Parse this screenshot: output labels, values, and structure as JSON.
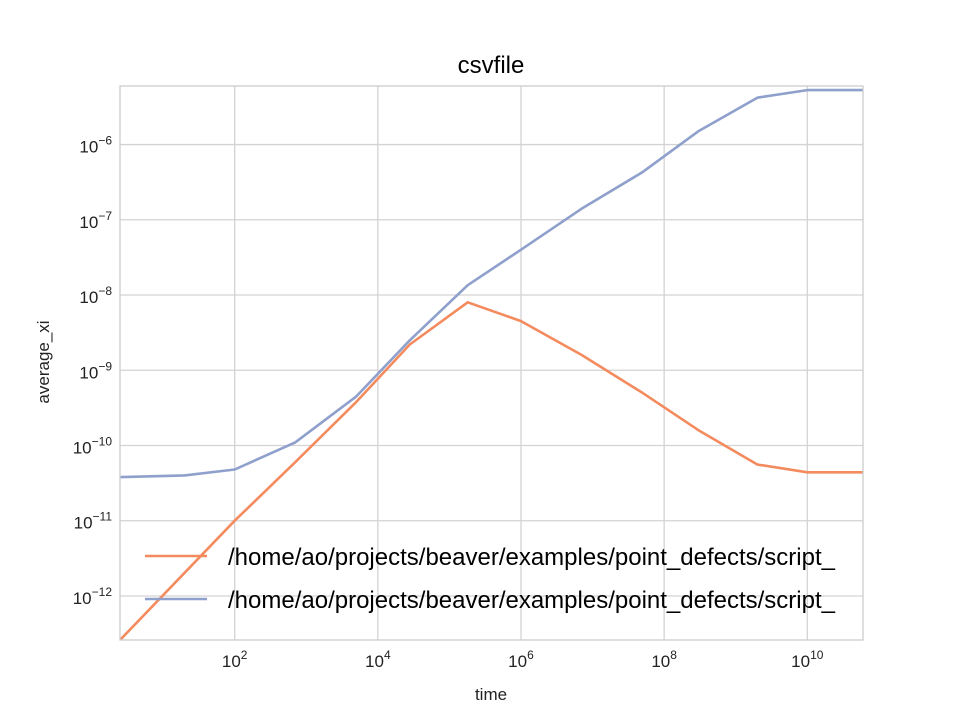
{
  "chart_data": {
    "type": "line",
    "title": "csvfile",
    "xlabel": "time",
    "ylabel": "average_xi",
    "xscale": "log",
    "yscale": "log",
    "xlim": [
      2.5,
      60000000000
    ],
    "ylim": [
      2.6e-13,
      6e-06
    ],
    "grid": true,
    "legend_position": "lower-right",
    "xticks": [
      {
        "base": "10",
        "exp": "2",
        "value": 100
      },
      {
        "base": "10",
        "exp": "4",
        "value": 10000
      },
      {
        "base": "10",
        "exp": "6",
        "value": 1000000
      },
      {
        "base": "10",
        "exp": "8",
        "value": 100000000
      },
      {
        "base": "10",
        "exp": "10",
        "value": 10000000000
      }
    ],
    "yticks": [
      {
        "base": "10",
        "exp": "−12",
        "value": 1e-12
      },
      {
        "base": "10",
        "exp": "−11",
        "value": 1e-11
      },
      {
        "base": "10",
        "exp": "−10",
        "value": 1e-10
      },
      {
        "base": "10",
        "exp": "−9",
        "value": 1e-09
      },
      {
        "base": "10",
        "exp": "−8",
        "value": 1e-08
      },
      {
        "base": "10",
        "exp": "−7",
        "value": 1e-07
      },
      {
        "base": "10",
        "exp": "−6",
        "value": 1e-06
      }
    ],
    "series": [
      {
        "name": "/home/ao/projects/beaver/examples/point_defects/script_",
        "color": "#f48b5e",
        "x": [
          2.5,
          100,
          700,
          5000,
          28000,
          180000,
          1000000,
          7000000,
          50000000,
          300000000,
          2000000000,
          10000000000,
          60000000000
        ],
        "y": [
          2.6e-13,
          1e-11,
          6e-11,
          3.8e-10,
          2.2e-09,
          8e-09,
          4.5e-09,
          1.6e-09,
          5e-10,
          1.6e-10,
          5.6e-11,
          4.4e-11,
          4.4e-11
        ]
      },
      {
        "name": "/home/ao/projects/beaver/examples/point_defects/script_",
        "color": "#8ea0cb",
        "x": [
          2.5,
          20,
          100,
          700,
          5000,
          28000,
          180000,
          1000000,
          7000000,
          50000000,
          300000000,
          2000000000,
          10000000000,
          60000000000
        ],
        "y": [
          3.8e-11,
          4e-11,
          4.8e-11,
          1.1e-10,
          4.5e-10,
          2.5e-09,
          1.35e-08,
          4e-08,
          1.4e-07,
          4.3e-07,
          1.5e-06,
          4.2e-06,
          5.3e-06,
          5.3e-06
        ]
      }
    ]
  }
}
